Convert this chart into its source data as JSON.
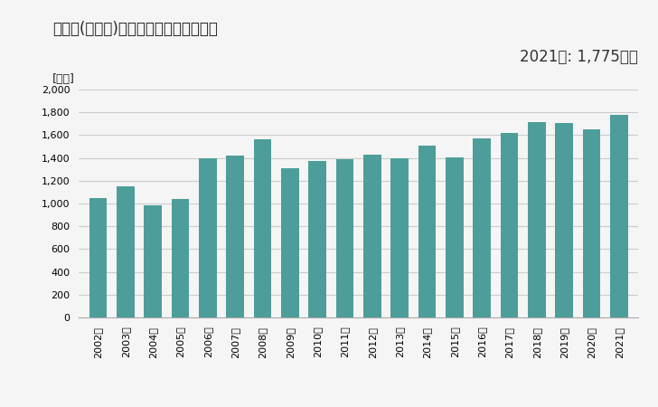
{
  "title": "菰野町(三重県)の製造品出荷額等の推移",
  "ylabel": "[億円]",
  "annotation": "2021年: 1,775億円",
  "bar_color": "#4d9e9a",
  "background_color": "#f5f5f5",
  "years": [
    "2002年",
    "2003年",
    "2004年",
    "2005年",
    "2006年",
    "2007年",
    "2008年",
    "2009年",
    "2010年",
    "2011年",
    "2012年",
    "2013年",
    "2014年",
    "2015年",
    "2016年",
    "2017年",
    "2018年",
    "2019年",
    "2020年",
    "2021年"
  ],
  "values": [
    1050,
    1150,
    985,
    1040,
    1395,
    1420,
    1560,
    1310,
    1375,
    1385,
    1430,
    1395,
    1505,
    1405,
    1570,
    1620,
    1715,
    1705,
    1650,
    1775
  ],
  "ylim": [
    0,
    2000
  ],
  "yticks": [
    0,
    200,
    400,
    600,
    800,
    1000,
    1200,
    1400,
    1600,
    1800,
    2000
  ],
  "title_fontsize": 12,
  "ylabel_fontsize": 9,
  "annotation_fontsize": 12,
  "tick_fontsize": 8,
  "grid_color": "#cccccc",
  "spine_color": "#aaaaaa"
}
